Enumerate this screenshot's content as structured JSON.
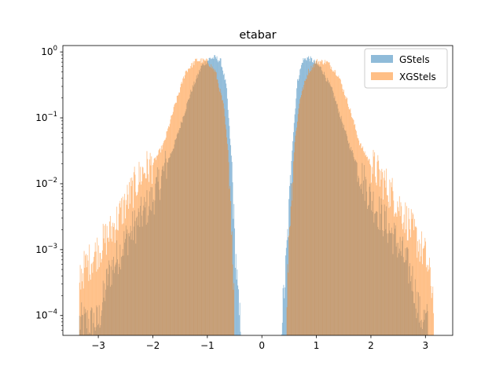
{
  "chart_data": {
    "type": "histogram",
    "title": "etabar",
    "xlabel": "",
    "ylabel": "",
    "xlim": [
      -3.65,
      3.5
    ],
    "ylim": [
      5e-05,
      1.25
    ],
    "y_scale": "log",
    "x_ticks": [
      -3,
      -2,
      -1,
      0,
      1,
      2,
      3
    ],
    "x_tick_labels": [
      "−3",
      "−2",
      "−1",
      "0",
      "1",
      "2",
      "3"
    ],
    "y_ticks": [
      0.0001,
      0.001,
      0.01,
      0.1,
      1
    ],
    "y_tick_labels": [
      {
        "base": "10",
        "exp": "−4"
      },
      {
        "base": "10",
        "exp": "−3"
      },
      {
        "base": "10",
        "exp": "−2"
      },
      {
        "base": "10",
        "exp": "−1"
      },
      {
        "base": "10",
        "exp": "0"
      }
    ],
    "grid": false,
    "legend": {
      "placement": "upper-right"
    },
    "series": [
      {
        "name": "GStels",
        "color": "#1f77b4",
        "alpha": 0.5,
        "curve_x": [
          -3.35,
          -3.0,
          -2.82,
          -2.5,
          -2.0,
          -1.6,
          -1.3,
          -1.1,
          -0.95,
          -0.85,
          -0.75,
          -0.65,
          -0.55,
          -0.5,
          -0.45,
          -0.42,
          -0.38,
          0.36,
          0.42,
          0.48,
          0.55,
          0.65,
          0.75,
          0.85,
          0.95,
          1.1,
          1.3,
          1.6,
          2.0,
          2.5,
          2.75,
          2.9,
          3.05
        ],
        "curve_y": [
          8e-05,
          8e-05,
          0.0004,
          0.0014,
          0.006,
          0.04,
          0.25,
          0.62,
          0.8,
          0.82,
          0.72,
          0.3,
          0.02,
          0.0015,
          0.0003,
          0.0001,
          8e-05,
          8e-05,
          0.0003,
          0.002,
          0.03,
          0.35,
          0.75,
          0.82,
          0.72,
          0.55,
          0.25,
          0.04,
          0.006,
          0.0012,
          0.0004,
          0.0001,
          8e-05
        ]
      },
      {
        "name": "XGStels",
        "color": "#ff7f0e",
        "alpha": 0.5,
        "curve_x": [
          -3.35,
          -3.0,
          -2.75,
          -2.5,
          -2.2,
          -2.0,
          -1.8,
          -1.6,
          -1.4,
          -1.2,
          -1.0,
          -0.85,
          -0.7,
          -0.6,
          -0.55,
          -0.5,
          0.45,
          0.5,
          0.6,
          0.7,
          0.85,
          1.0,
          1.2,
          1.4,
          1.6,
          1.8,
          2.0,
          2.2,
          2.5,
          2.75,
          3.0,
          3.15
        ],
        "curve_y": [
          0.0004,
          0.001,
          0.002,
          0.005,
          0.015,
          0.02,
          0.04,
          0.15,
          0.5,
          0.75,
          0.72,
          0.5,
          0.15,
          0.02,
          0.002,
          0.0001,
          0.0001,
          0.002,
          0.04,
          0.2,
          0.5,
          0.72,
          0.7,
          0.45,
          0.15,
          0.04,
          0.02,
          0.012,
          0.005,
          0.002,
          0.0008,
          0.0002
        ]
      }
    ]
  }
}
